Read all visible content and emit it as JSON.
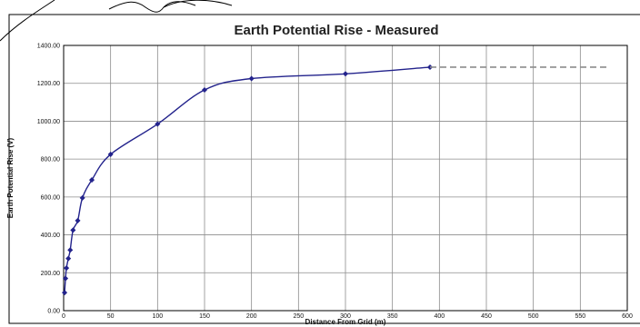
{
  "chart_data": {
    "type": "line",
    "title": "Earth Potential Rise - Measured",
    "xlabel": "Distance From Grid (m)",
    "ylabel": "Earth Potential Rise (V)",
    "xlim": [
      0,
      600
    ],
    "ylim": [
      0,
      1400
    ],
    "x_ticks": [
      "0",
      "50",
      "100",
      "150",
      "200",
      "250",
      "300",
      "350",
      "400",
      "450",
      "500",
      "550",
      "600"
    ],
    "y_ticks": [
      "0.00",
      "200.00",
      "400.00",
      "600.00",
      "800.00",
      "1000.00",
      "1200.00",
      "1400.00"
    ],
    "grid": true,
    "series": [
      {
        "style": "solid",
        "color": "#23238c",
        "markers": true,
        "x": [
          1,
          2,
          3,
          5,
          7,
          10,
          15,
          20,
          30,
          50,
          100,
          150,
          200,
          300,
          390
        ],
        "y": [
          95,
          170,
          225,
          275,
          320,
          425,
          475,
          595,
          690,
          825,
          985,
          1165,
          1225,
          1250,
          1285
        ]
      },
      {
        "style": "dashed",
        "color": "#8c8c8c",
        "markers": false,
        "x": [
          390,
          580
        ],
        "y": [
          1285,
          1285
        ]
      }
    ]
  }
}
